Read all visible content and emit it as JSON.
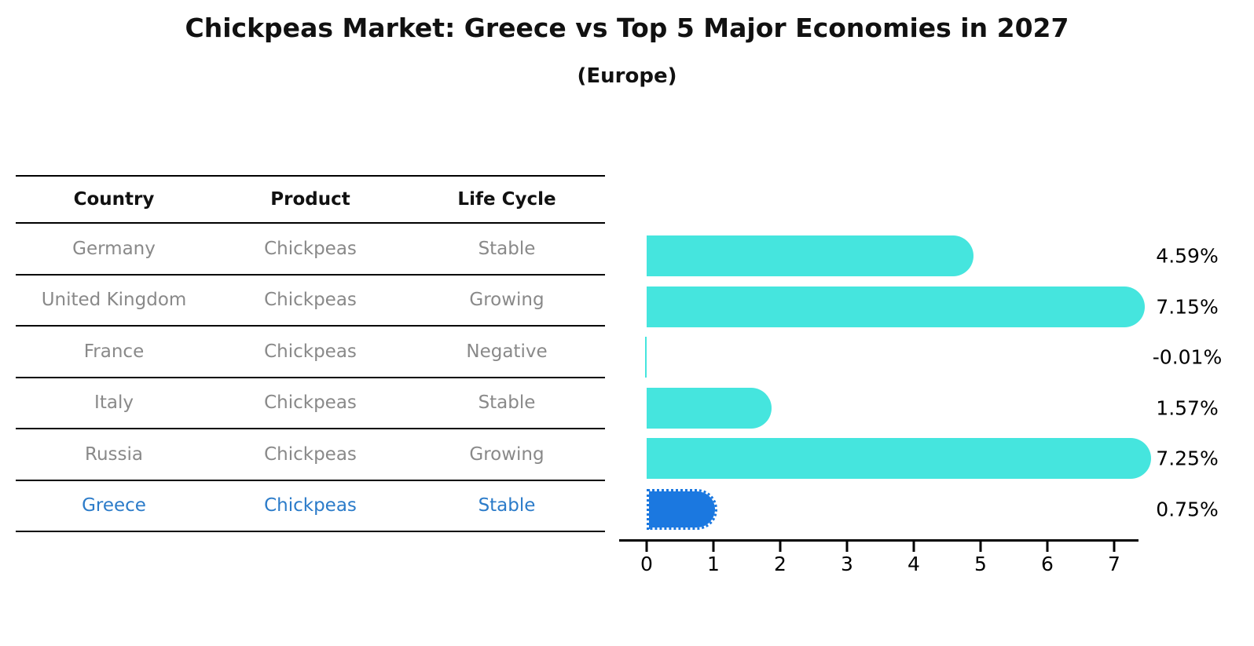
{
  "title": "Chickpeas Market: Greece vs Top 5 Major Economies in 2027",
  "subtitle": "(Europe)",
  "table": {
    "columns": [
      "Country",
      "Product",
      "Life Cycle"
    ],
    "highlight_text_color": "#2B7BC9",
    "rows": [
      {
        "country": "Germany",
        "product": "Chickpeas",
        "life_cycle": "Stable",
        "highlight": false
      },
      {
        "country": "United Kingdom",
        "product": "Chickpeas",
        "life_cycle": "Growing",
        "highlight": false
      },
      {
        "country": "France",
        "product": "Chickpeas",
        "life_cycle": "Negative",
        "highlight": false
      },
      {
        "country": "Italy",
        "product": "Chickpeas",
        "life_cycle": "Stable",
        "highlight": false
      },
      {
        "country": "Russia",
        "product": "Chickpeas",
        "life_cycle": "Growing",
        "highlight": false
      },
      {
        "country": "Greece",
        "product": "Chickpeas",
        "life_cycle": "Stable",
        "highlight": true
      }
    ]
  },
  "chart_data": {
    "type": "bar",
    "orientation": "horizontal",
    "title": "Chickpeas Market: Greece vs Top 5 Major Economies in 2027 (Europe)",
    "categories": [
      "Germany",
      "United Kingdom",
      "France",
      "Italy",
      "Russia",
      "Greece"
    ],
    "values": [
      4.59,
      7.15,
      -0.01,
      1.57,
      7.25,
      0.75
    ],
    "value_labels": [
      "4.59%",
      "7.15%",
      "-0.01%",
      "1.57%",
      "7.25%",
      "0.75%"
    ],
    "xlabel": "",
    "ylabel": "",
    "xticks": [
      0,
      1,
      2,
      3,
      4,
      5,
      6,
      7
    ],
    "xlim": [
      -0.4,
      7.6
    ],
    "grid": false,
    "legend": null,
    "bar_color": "#45E5DE",
    "highlight_color": "#1B78E0",
    "highlight_index": 5
  }
}
